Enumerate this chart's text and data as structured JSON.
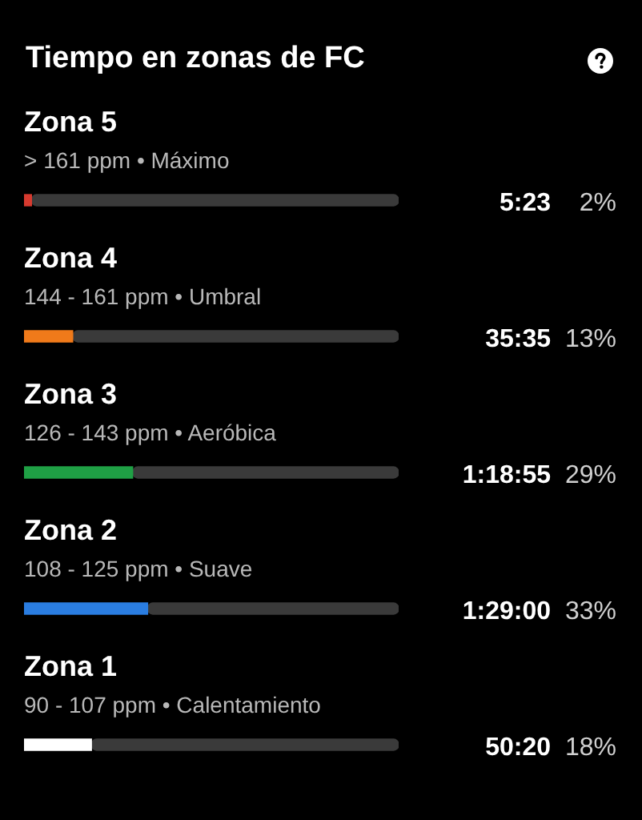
{
  "chart_data": {
    "type": "bar",
    "orientation": "horizontal",
    "title": "Tiempo en zonas de FC",
    "stacked": true,
    "categories": [
      "Zona 5",
      "Zona 4",
      "Zona 3",
      "Zona 2",
      "Zona 1"
    ],
    "series": [
      {
        "values": [
          2,
          13,
          29,
          33,
          18
        ],
        "colors": [
          "#d63a2f",
          "#f07a1a",
          "#1fa045",
          "#2a7de1",
          "#ffffff"
        ],
        "value_labels": [
          "2%",
          "13%",
          "29%",
          "33%",
          "18%"
        ]
      },
      {
        "color": "#3a3a3a",
        "values": [
          98,
          87,
          71,
          67,
          82
        ]
      }
    ],
    "xlim": [
      0,
      100
    ],
    "annotations": [
      "> 161 ppm • Máximo",
      "144 - 161 ppm • Umbral",
      "126 - 143 ppm • Aeróbica",
      "108 - 125 ppm • Suave",
      "90 - 107 ppm • Calentamiento",
      "5:23",
      "35:35",
      "1:18:55",
      "1:29:00",
      "50:20"
    ],
    "legend": false,
    "tick_labels": false
  }
}
